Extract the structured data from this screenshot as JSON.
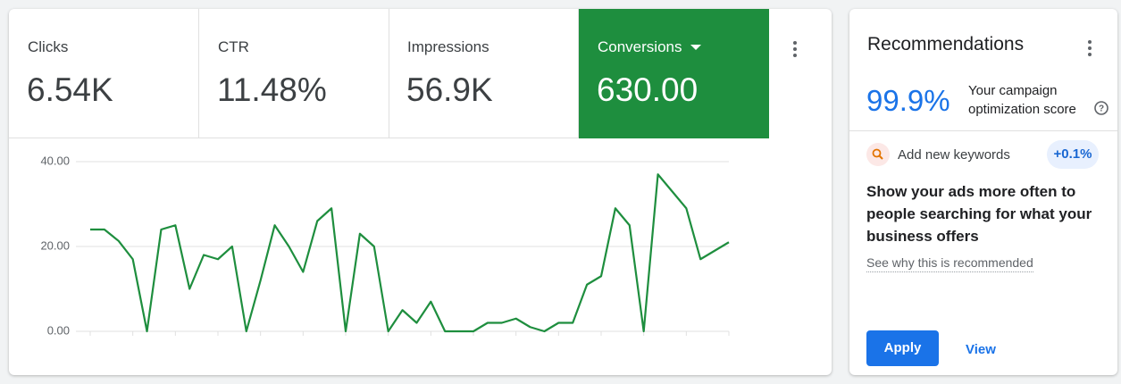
{
  "metrics": [
    {
      "label": "Clicks",
      "value": "6.54K"
    },
    {
      "label": "CTR",
      "value": "11.48%"
    },
    {
      "label": "Impressions",
      "value": "56.9K"
    },
    {
      "label": "Conversions",
      "value": "630.00"
    }
  ],
  "chart_data": {
    "type": "line",
    "color": "#1e8e3e",
    "grid": true,
    "values": [
      24,
      24,
      21.3,
      17,
      0,
      24,
      25,
      10,
      18,
      17,
      20,
      0,
      12,
      25,
      20,
      14,
      26,
      29,
      0,
      23,
      20,
      0,
      5,
      2,
      7,
      0,
      0,
      0,
      2,
      2,
      3,
      1,
      0,
      2,
      2,
      11,
      13,
      29,
      25,
      0,
      37,
      33,
      29,
      17,
      19,
      21
    ],
    "ylim": [
      0,
      40
    ],
    "yticks": [
      {
        "value": 0,
        "label": "0.00"
      },
      {
        "value": 20,
        "label": "20.00"
      },
      {
        "value": 40,
        "label": "40.00"
      }
    ]
  },
  "recommendations": {
    "title": "Recommendations",
    "score": "99.9%",
    "score_label": "Your campaign optimization score",
    "item": "Add new keywords",
    "uplift": "+0.1%",
    "headline": "Show your ads more often to people searching for what your business offers",
    "link": "See why this is recommended",
    "apply": "Apply",
    "view": "View"
  }
}
